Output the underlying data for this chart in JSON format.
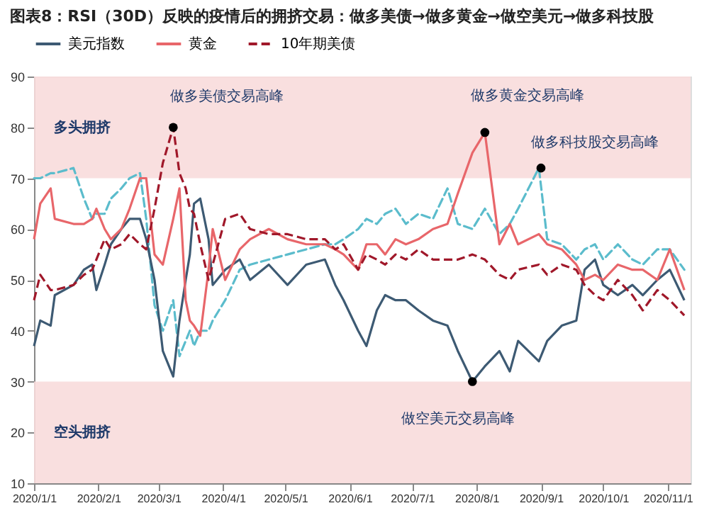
{
  "chart_data": {
    "type": "line",
    "title": "图表8：RSI（30D）反映的疫情后的拥挤交易：做多美债→做多黄金→做空美元→做多科技股",
    "x": [
      "2020-01-01",
      "2020-01-04",
      "2020-01-09",
      "2020-01-11",
      "2020-01-20",
      "2020-01-25",
      "2020-01-29",
      "2020-01-31",
      "2020-02-04",
      "2020-02-07",
      "2020-02-12",
      "2020-02-16",
      "2020-02-21",
      "2020-02-24",
      "2020-02-28",
      "2020-03-03",
      "2020-03-08",
      "2020-03-11",
      "2020-03-14",
      "2020-03-16",
      "2020-03-18",
      "2020-03-21",
      "2020-03-25",
      "2020-03-27",
      "2020-04-02",
      "2020-04-09",
      "2020-04-14",
      "2020-04-23",
      "2020-05-02",
      "2020-05-11",
      "2020-05-20",
      "2020-05-25",
      "2020-05-29",
      "2020-06-05",
      "2020-06-09",
      "2020-06-14",
      "2020-06-18",
      "2020-06-23",
      "2020-06-28",
      "2020-07-04",
      "2020-07-11",
      "2020-07-18",
      "2020-07-23",
      "2020-07-30",
      "2020-08-05",
      "2020-08-12",
      "2020-08-17",
      "2020-08-21",
      "2020-08-31",
      "2020-09-04",
      "2020-09-11",
      "2020-09-18",
      "2020-09-22",
      "2020-09-27",
      "2020-10-01",
      "2020-10-08",
      "2020-10-15",
      "2020-10-20",
      "2020-10-27",
      "2020-11-02",
      "2020-11-09"
    ],
    "series": [
      {
        "name": "美元指数",
        "color": "#3d5a73",
        "line_style": "solid",
        "values": [
          37,
          42,
          41,
          47,
          49,
          52,
          53,
          48,
          53,
          57,
          60,
          62,
          62,
          58,
          50,
          36,
          31,
          42,
          50,
          55,
          65,
          66,
          58,
          49,
          52,
          54,
          50,
          53,
          49,
          53,
          54,
          49,
          46,
          40,
          37,
          44,
          47,
          46,
          46,
          44,
          42,
          41,
          36,
          30,
          33,
          36,
          32,
          38,
          34,
          38,
          41,
          42,
          52,
          54,
          49,
          47,
          49,
          47,
          50,
          52,
          46
        ]
      },
      {
        "color": "#5bbccc",
        "line_style": "dashed",
        "values": [
          70,
          70,
          71,
          71,
          72,
          66,
          62,
          63,
          63,
          66,
          68,
          70,
          71,
          62,
          45,
          40,
          46,
          35,
          38,
          40,
          37,
          40,
          40,
          42,
          46,
          52,
          53,
          54,
          55,
          56,
          57,
          57,
          58,
          60,
          62,
          61,
          63,
          64,
          61,
          63,
          62,
          68,
          61,
          60,
          64,
          59,
          61,
          64,
          72,
          58,
          57,
          54,
          56,
          57,
          54,
          57,
          54,
          53,
          56,
          56,
          52
        ]
      },
      {
        "name": "黄金",
        "color": "#e8666a",
        "line_style": "solid",
        "values": [
          58,
          65,
          68,
          62,
          61,
          61,
          62,
          64,
          60,
          58,
          60,
          64,
          70,
          70,
          55,
          53,
          62,
          68,
          46,
          42,
          41,
          39,
          52,
          60,
          50,
          56,
          58,
          60,
          58,
          57,
          57,
          56,
          55,
          52,
          57,
          57,
          55,
          58,
          57,
          58,
          60,
          61,
          67,
          75,
          79,
          57,
          61,
          57,
          59,
          57,
          56,
          53,
          50,
          51,
          50,
          53,
          52,
          52,
          50,
          56,
          48
        ]
      },
      {
        "name": "10年期美债",
        "color": "#a0182a",
        "line_style": "dashed",
        "values": [
          46,
          51,
          48,
          48,
          49,
          51,
          52,
          54,
          58,
          56,
          57,
          59,
          57,
          56,
          64,
          73,
          80,
          71,
          68,
          64,
          63,
          57,
          50,
          53,
          62,
          63,
          60,
          59,
          59,
          58,
          58,
          56,
          57,
          52,
          55,
          54,
          53,
          55,
          54,
          56,
          54,
          54,
          54,
          55,
          54,
          51,
          50,
          52,
          53,
          51,
          53,
          52,
          49,
          47,
          46,
          50,
          47,
          44,
          48,
          46,
          43
        ]
      }
    ],
    "xlim": [
      "2020-01-01",
      "2020-11-12"
    ],
    "xticks": [
      {
        "value": "2020-01-01",
        "label": "2020/1/1"
      },
      {
        "value": "2020-02-01",
        "label": "2020/2/1"
      },
      {
        "value": "2020-03-01",
        "label": "2020/3/1"
      },
      {
        "value": "2020-04-01",
        "label": "2020/4/1"
      },
      {
        "value": "2020-05-01",
        "label": "2020/5/1"
      },
      {
        "value": "2020-06-01",
        "label": "2020/6/1"
      },
      {
        "value": "2020-07-01",
        "label": "2020/7/1"
      },
      {
        "value": "2020-08-01",
        "label": "2020/8/1"
      },
      {
        "value": "2020-09-01",
        "label": "2020/9/1"
      },
      {
        "value": "2020-10-01",
        "label": "2020/10/1"
      },
      {
        "value": "2020-11-01",
        "label": "2020/11/1"
      }
    ],
    "ylim": [
      10,
      90
    ],
    "yticks": [
      10,
      20,
      30,
      40,
      50,
      60,
      70,
      80,
      90
    ],
    "bands": [
      {
        "axis": "y",
        "from": 70,
        "to": 90,
        "label": "多头拥挤",
        "color": "#f8dcdc"
      },
      {
        "axis": "y",
        "from": 10,
        "to": 30,
        "label": "空头拥挤",
        "color": "#f8dcdc"
      }
    ],
    "annotations": [
      {
        "text": "做多美债交易高峰",
        "x": "2020-03-08",
        "y": 80
      },
      {
        "text": "做多黄金交易高峰",
        "x": "2020-08-05",
        "y": 79
      },
      {
        "text": "做多科技股交易高峰",
        "x": "2020-09-01",
        "y": 72
      },
      {
        "text": "做空美元交易高峰",
        "x": "2020-07-30",
        "y": 30
      }
    ],
    "legend": "top",
    "grid": false,
    "marker": "none"
  }
}
